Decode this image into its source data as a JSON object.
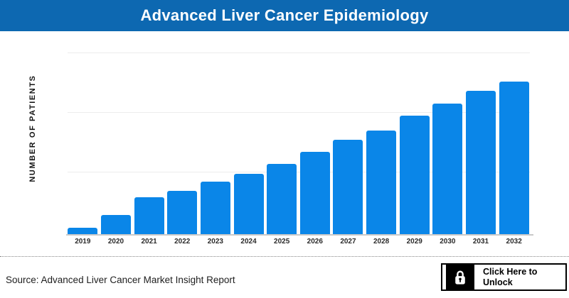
{
  "header": {
    "title": "Advanced Liver Cancer Epidemiology",
    "background_color": "#0d68b1",
    "text_color": "#ffffff"
  },
  "chart_data": {
    "type": "bar",
    "title": "Advanced Liver Cancer Epidemiology",
    "categories": [
      "2019",
      "2020",
      "2021",
      "2022",
      "2023",
      "2024",
      "2025",
      "2026",
      "2027",
      "2028",
      "2029",
      "2030",
      "2031",
      "2032"
    ],
    "values": [
      4.2,
      12.6,
      24.2,
      28.4,
      34.4,
      39.5,
      46.0,
      54.0,
      61.9,
      67.9,
      77.7,
      85.6,
      94.0,
      100.0
    ],
    "values_note": "No numeric y-axis tick labels shown; values are bar heights relative to the 2032 bar (= 100)",
    "xlabel": "",
    "ylabel": "NUMBER OF PATIENTS",
    "ylim": [
      0,
      119
    ],
    "grid": true,
    "gridline_count": 3,
    "legend": false,
    "bar_color": "#0a86e8"
  },
  "footer": {
    "source": "Source: Advanced Liver Cancer Market Insight Report",
    "unlock_label_line1": "Click Here to",
    "unlock_label_line2": "Unlock",
    "lock_icon": "padlock-icon"
  }
}
